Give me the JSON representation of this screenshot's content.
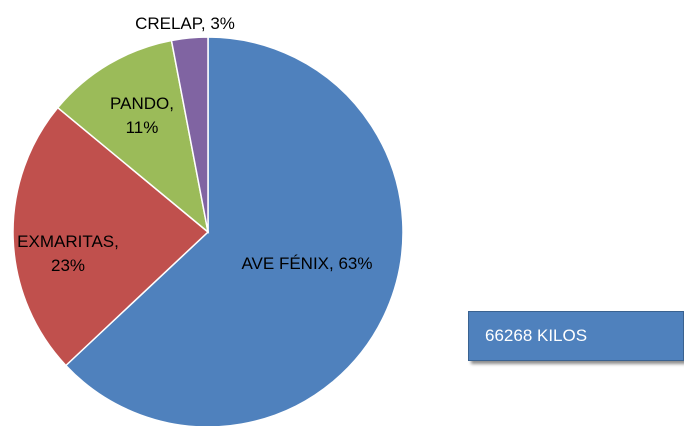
{
  "chart_data": {
    "type": "pie",
    "categories": [
      "AVE FÉNIX",
      "EXMARITAS",
      "PANDO",
      "CRELAP"
    ],
    "values": [
      63,
      23,
      11,
      3
    ],
    "value_labels": [
      "AVE FÉNIX, 63%",
      "EXMARITAS, 23%",
      "PANDO, 11%",
      "CRELAP, 3%"
    ],
    "colors": [
      "#4f81bd",
      "#c0504d",
      "#9bbb59",
      "#8064a2"
    ],
    "annotation": "66268 KILOS"
  }
}
